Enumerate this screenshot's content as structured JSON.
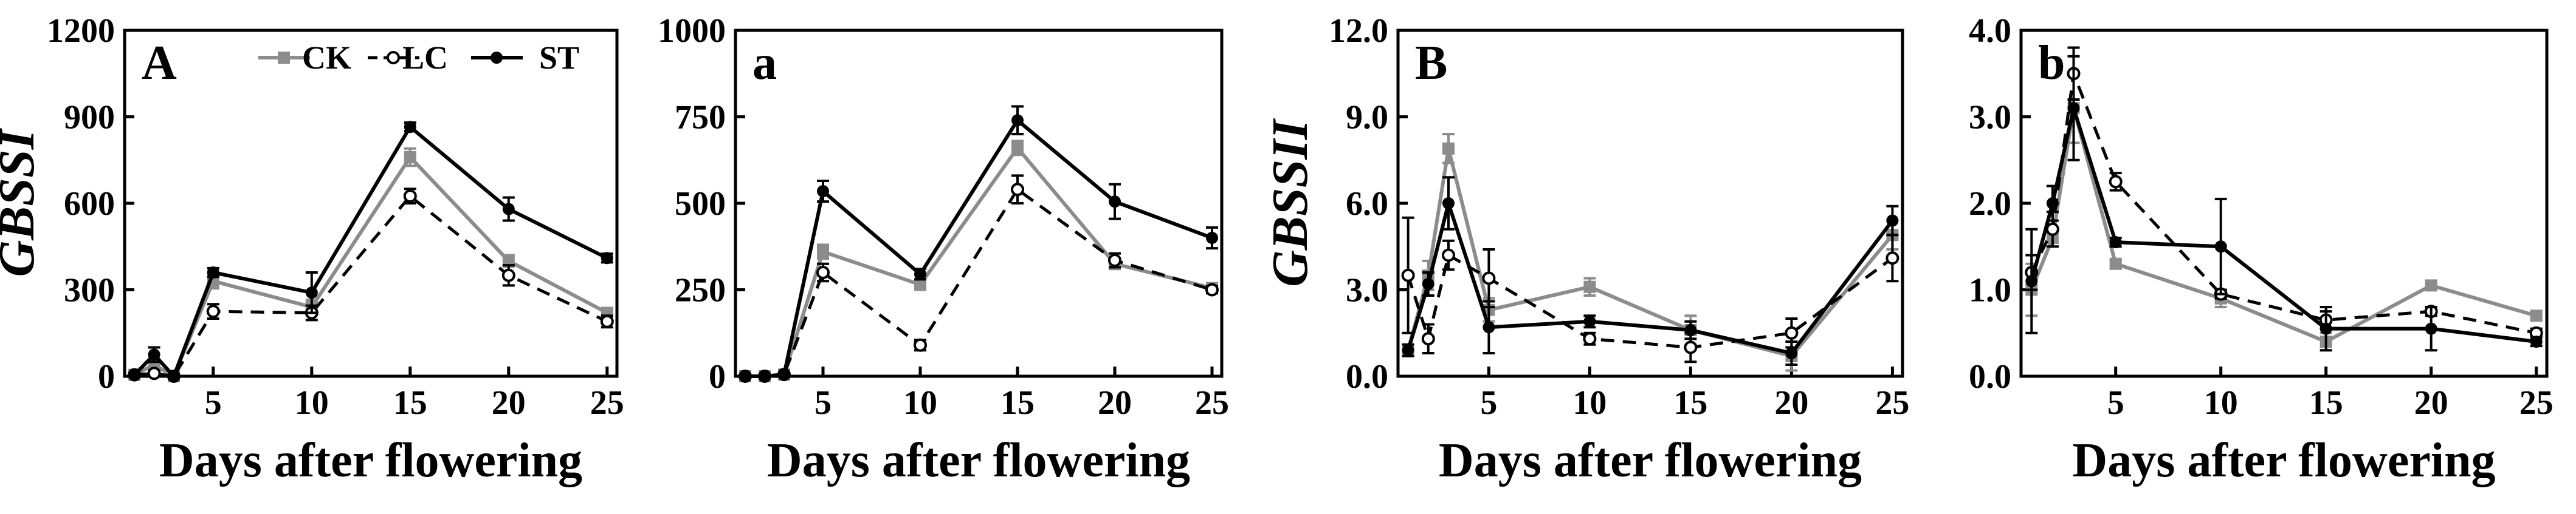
{
  "chart_data": [
    {
      "type": "line",
      "panel_label": "A",
      "ylabel": "GBSSI",
      "xlabel": "Days after flowering",
      "ylim": [
        0,
        1200
      ],
      "yticks": [
        "0",
        "300",
        "600",
        "900",
        "1200"
      ],
      "xticks": [
        "5",
        "10",
        "15",
        "20",
        "25"
      ],
      "x": [
        1,
        2,
        3,
        5,
        10,
        15,
        20,
        25
      ],
      "series": [
        {
          "name": "CK",
          "values": [
            5,
            40,
            0,
            330,
            240,
            760,
            400,
            220
          ],
          "errors": [
            5,
            20,
            5,
            25,
            25,
            30,
            20,
            15
          ]
        },
        {
          "name": "LC",
          "values": [
            5,
            10,
            0,
            225,
            220,
            625,
            350,
            190
          ],
          "errors": [
            5,
            10,
            5,
            25,
            25,
            25,
            35,
            20
          ]
        },
        {
          "name": "ST",
          "values": [
            5,
            75,
            0,
            360,
            290,
            865,
            580,
            410
          ],
          "errors": [
            5,
            25,
            5,
            15,
            70,
            15,
            40,
            15
          ]
        }
      ]
    },
    {
      "type": "line",
      "panel_label": "a",
      "ylabel": "",
      "xlabel": "Days after flowering",
      "ylim": [
        0,
        1000
      ],
      "yticks": [
        "0",
        "250",
        "500",
        "750",
        "1000"
      ],
      "xticks": [
        "5",
        "10",
        "15",
        "20",
        "25"
      ],
      "x": [
        1,
        2,
        3,
        5,
        10,
        15,
        20,
        25
      ],
      "series": [
        {
          "name": "CK",
          "values": [
            0,
            0,
            5,
            360,
            265,
            660,
            325,
            255
          ],
          "errors": [
            3,
            3,
            5,
            20,
            15,
            20,
            15,
            10
          ]
        },
        {
          "name": "LC",
          "values": [
            0,
            0,
            5,
            300,
            90,
            540,
            335,
            250
          ],
          "errors": [
            3,
            3,
            5,
            25,
            15,
            40,
            20,
            10
          ]
        },
        {
          "name": "ST",
          "values": [
            0,
            0,
            5,
            535,
            295,
            740,
            505,
            400
          ],
          "errors": [
            3,
            3,
            5,
            30,
            15,
            40,
            50,
            30
          ]
        }
      ]
    },
    {
      "type": "line",
      "panel_label": "B",
      "ylabel": "GBSSII",
      "xlabel": "Days after flowering",
      "ylim": [
        0,
        12
      ],
      "yticks": [
        "0.0",
        "3.0",
        "6.0",
        "9.0",
        "12.0"
      ],
      "xticks": [
        "5",
        "10",
        "15",
        "20",
        "25"
      ],
      "x": [
        1,
        2,
        3,
        5,
        10,
        15,
        20,
        25
      ],
      "series": [
        {
          "name": "CK",
          "values": [
            0.9,
            3.5,
            7.9,
            2.3,
            3.1,
            1.6,
            0.7,
            4.9
          ],
          "errors": [
            0.2,
            0.5,
            0.5,
            0.4,
            0.3,
            0.5,
            0.5,
            0.5
          ]
        },
        {
          "name": "LC",
          "values": [
            3.5,
            1.3,
            4.2,
            3.4,
            1.3,
            1.0,
            1.5,
            4.1
          ],
          "errors": [
            2.0,
            0.5,
            0.5,
            1.0,
            0.2,
            0.5,
            0.5,
            0.8
          ]
        },
        {
          "name": "ST",
          "values": [
            0.9,
            3.2,
            6.0,
            1.7,
            1.9,
            1.6,
            0.8,
            5.4
          ],
          "errors": [
            0.2,
            0.4,
            0.9,
            0.9,
            0.2,
            0.3,
            0.4,
            0.5
          ]
        }
      ]
    },
    {
      "type": "line",
      "panel_label": "b",
      "ylabel": "",
      "xlabel": "Days after flowering",
      "ylim": [
        0,
        4
      ],
      "yticks": [
        "0.0",
        "1.0",
        "2.0",
        "3.0",
        "4.0"
      ],
      "xticks": [
        "5",
        "10",
        "15",
        "20",
        "25"
      ],
      "x": [
        1,
        2,
        3,
        5,
        10,
        15,
        20,
        25
      ],
      "series": [
        {
          "name": "CK",
          "values": [
            1.0,
            1.6,
            3.1,
            1.3,
            0.9,
            0.4,
            1.05,
            0.7
          ],
          "errors": [
            0.3,
            0.1,
            0.4,
            0.05,
            0.1,
            0.1,
            0.05,
            0.05
          ]
        },
        {
          "name": "LC",
          "values": [
            1.2,
            1.7,
            3.5,
            2.25,
            0.95,
            0.65,
            0.75,
            0.5
          ],
          "errors": [
            0.2,
            0.2,
            0.3,
            0.1,
            0.05,
            0.1,
            0.05,
            0.05
          ]
        },
        {
          "name": "ST",
          "values": [
            1.1,
            2.0,
            3.1,
            1.55,
            1.5,
            0.55,
            0.55,
            0.4
          ],
          "errors": [
            0.6,
            0.2,
            0.6,
            0.05,
            0.55,
            0.25,
            0.25,
            0.05
          ]
        }
      ]
    }
  ],
  "legend": [
    {
      "name": "CK",
      "label": "CK"
    },
    {
      "name": "LC",
      "label": "LC"
    },
    {
      "name": "ST",
      "label": "ST"
    }
  ],
  "series_colors": {
    "CK": "#8c8c8c",
    "LC": "#000000",
    "ST": "#000000"
  }
}
